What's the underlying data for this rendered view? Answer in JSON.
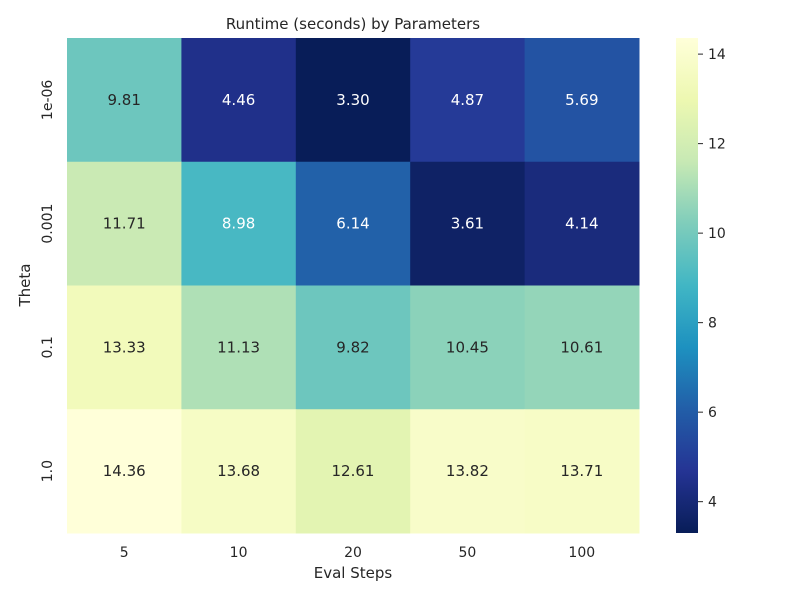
{
  "chart_data": {
    "type": "heatmap",
    "title": "Runtime (seconds) by Parameters",
    "xlabel": "Eval Steps",
    "ylabel": "Theta",
    "x_categories": [
      "5",
      "10",
      "20",
      "50",
      "100"
    ],
    "y_categories": [
      "1e-06",
      "0.001",
      "0.1",
      "1.0"
    ],
    "values": [
      [
        9.81,
        4.46,
        3.3,
        4.87,
        5.69
      ],
      [
        11.71,
        8.98,
        6.14,
        3.61,
        4.14
      ],
      [
        13.33,
        11.13,
        9.82,
        10.45,
        10.61
      ],
      [
        14.36,
        13.68,
        12.61,
        13.82,
        13.71
      ]
    ],
    "cell_labels": [
      [
        "9.81",
        "4.46",
        "3.30",
        "4.87",
        "5.69"
      ],
      [
        "11.71",
        "8.98",
        "6.14",
        "3.61",
        "4.14"
      ],
      [
        "13.33",
        "11.13",
        "9.82",
        "10.45",
        "10.61"
      ],
      [
        "14.36",
        "13.68",
        "12.61",
        "13.82",
        "13.71"
      ]
    ],
    "colormap": "YlGnBu",
    "colorbar": {
      "min": 3.3,
      "max": 14.36,
      "ticks": [
        4,
        6,
        8,
        10,
        12,
        14
      ]
    },
    "grid": false
  }
}
